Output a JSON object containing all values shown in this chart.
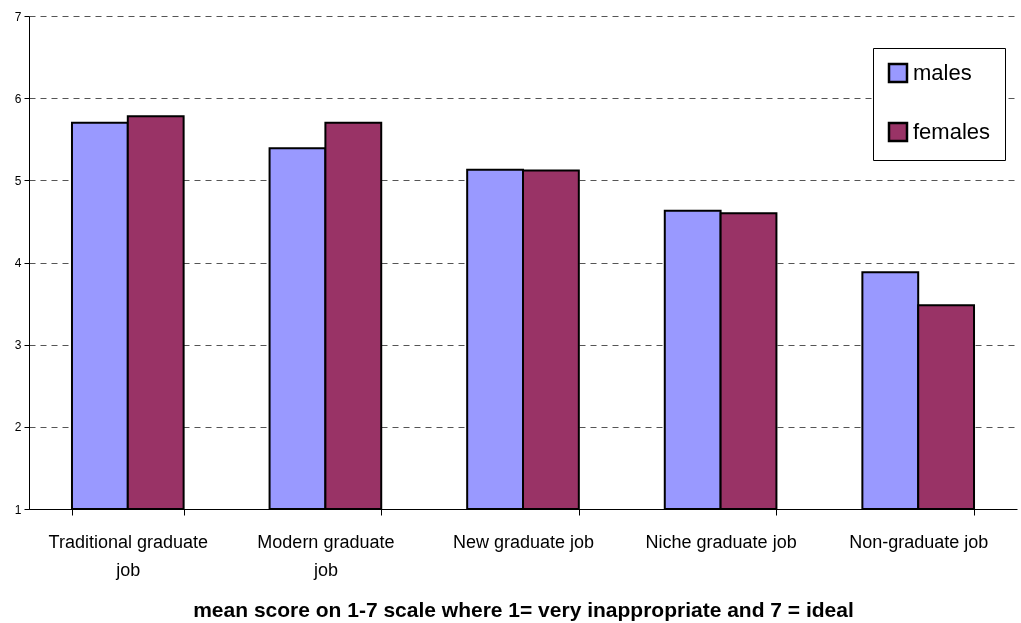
{
  "chart_data": {
    "type": "bar",
    "xlabel": "mean score on 1-7 scale where 1= very inappropriate and 7 = ideal",
    "categories": [
      "Traditional graduate job",
      "Modern graduate job",
      "New graduate job",
      "Niche graduate job",
      "Non-graduate job"
    ],
    "series": [
      {
        "name": "males",
        "color": "#9999ff",
        "values": [
          5.7,
          5.39,
          5.13,
          4.63,
          3.88
        ]
      },
      {
        "name": "females",
        "color": "#993366",
        "values": [
          5.78,
          5.7,
          5.12,
          4.6,
          3.48
        ]
      }
    ],
    "ylim": [
      1,
      7
    ],
    "yticks": [
      1,
      2,
      3,
      4,
      5,
      6,
      7
    ],
    "grid": "y",
    "legend": "top right"
  }
}
